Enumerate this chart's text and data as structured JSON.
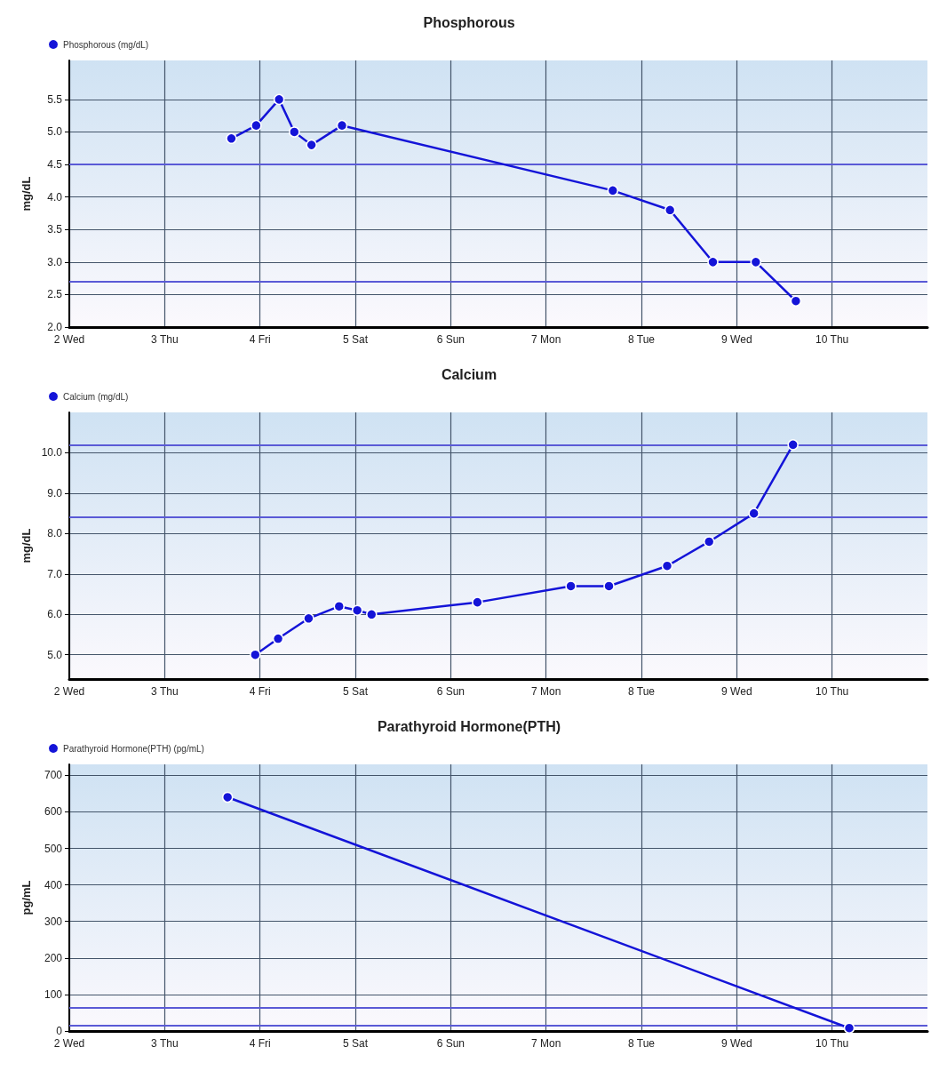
{
  "chart_data": [
    {
      "type": "line",
      "title": "Phosphorous",
      "ylabel": "mg/dL",
      "legend": "top left",
      "grid": true,
      "marker": "circle",
      "line_style": "solid",
      "xlim": [
        2,
        11
      ],
      "xticks": [
        {
          "value": 2,
          "label": "2 Wed"
        },
        {
          "value": 3,
          "label": "3 Thu"
        },
        {
          "value": 4,
          "label": "4 Fri"
        },
        {
          "value": 5,
          "label": "5 Sat"
        },
        {
          "value": 6,
          "label": "6 Sun"
        },
        {
          "value": 7,
          "label": "7 Mon"
        },
        {
          "value": 8,
          "label": "8 Tue"
        },
        {
          "value": 9,
          "label": "9 Wed"
        },
        {
          "value": 10,
          "label": "10 Thu"
        }
      ],
      "ylim": [
        2.0,
        6.1
      ],
      "yticks": [
        {
          "value": 2,
          "label": "2.0"
        },
        {
          "value": 2.5,
          "label": "2.5"
        },
        {
          "value": 3,
          "label": "3.0"
        },
        {
          "value": 3.5,
          "label": "3.5"
        },
        {
          "value": 4,
          "label": "4.0"
        },
        {
          "value": 4.5,
          "label": "4.5"
        },
        {
          "value": 5,
          "label": "5.0"
        },
        {
          "value": 5.5,
          "label": "5.5"
        }
      ],
      "series": [
        {
          "name": "Phosphorous (mg/dL)",
          "color": "#1414d8",
          "x": [
            3.7,
            3.96,
            4.2,
            4.36,
            4.54,
            4.86,
            7.7,
            8.3,
            8.75,
            9.2,
            9.62
          ],
          "values": [
            4.9,
            5.1,
            5.5,
            5.0,
            4.8,
            5.1,
            4.1,
            3.8,
            3.0,
            3.0,
            2.4
          ]
        }
      ],
      "ref_lines": [
        {
          "axis": "y",
          "value": 4.5,
          "color": "#5a5ad6"
        },
        {
          "axis": "y",
          "value": 2.7,
          "color": "#5a5ad6"
        }
      ]
    },
    {
      "type": "line",
      "title": "Calcium",
      "ylabel": "mg/dL",
      "legend": "top left",
      "grid": true,
      "marker": "circle",
      "line_style": "solid",
      "xlim": [
        2,
        11
      ],
      "xticks": [
        {
          "value": 2,
          "label": "2 Wed"
        },
        {
          "value": 3,
          "label": "3 Thu"
        },
        {
          "value": 4,
          "label": "4 Fri"
        },
        {
          "value": 5,
          "label": "5 Sat"
        },
        {
          "value": 6,
          "label": "6 Sun"
        },
        {
          "value": 7,
          "label": "7 Mon"
        },
        {
          "value": 8,
          "label": "8 Tue"
        },
        {
          "value": 9,
          "label": "9 Wed"
        },
        {
          "value": 10,
          "label": "10 Thu"
        }
      ],
      "ylim": [
        4.4,
        11.0
      ],
      "yticks": [
        {
          "value": 5,
          "label": "5.0"
        },
        {
          "value": 6,
          "label": "6.0"
        },
        {
          "value": 7,
          "label": "7.0"
        },
        {
          "value": 8,
          "label": "8.0"
        },
        {
          "value": 9,
          "label": "9.0"
        },
        {
          "value": 10,
          "label": "10.0"
        }
      ],
      "series": [
        {
          "name": "Calcium (mg/dL)",
          "color": "#1414d8",
          "x": [
            3.95,
            4.19,
            4.51,
            4.83,
            5.02,
            5.17,
            6.28,
            7.26,
            7.66,
            8.27,
            8.71,
            9.18,
            9.59
          ],
          "values": [
            5.0,
            5.4,
            5.9,
            6.2,
            6.1,
            6.0,
            6.3,
            6.7,
            6.7,
            7.2,
            7.8,
            8.5,
            10.2
          ]
        }
      ],
      "ref_lines": [
        {
          "axis": "y",
          "value": 10.2,
          "color": "#5a5ad6"
        },
        {
          "axis": "y",
          "value": 8.4,
          "color": "#5a5ad6"
        }
      ]
    },
    {
      "type": "line",
      "title": "Parathyroid Hormone(PTH)",
      "ylabel": "pg/mL",
      "legend": "top left",
      "grid": true,
      "marker": "circle",
      "line_style": "solid",
      "xlim": [
        2,
        11
      ],
      "xticks": [
        {
          "value": 2,
          "label": "2 Wed"
        },
        {
          "value": 3,
          "label": "3 Thu"
        },
        {
          "value": 4,
          "label": "4 Fri"
        },
        {
          "value": 5,
          "label": "5 Sat"
        },
        {
          "value": 6,
          "label": "6 Sun"
        },
        {
          "value": 7,
          "label": "7 Mon"
        },
        {
          "value": 8,
          "label": "8 Tue"
        },
        {
          "value": 9,
          "label": "9 Wed"
        },
        {
          "value": 10,
          "label": "10 Thu"
        }
      ],
      "ylim": [
        0,
        730
      ],
      "yticks": [
        0,
        100,
        200,
        300,
        400,
        500,
        600,
        700
      ],
      "series": [
        {
          "name": "Parathyroid Hormone(PTH) (pg/mL)",
          "color": "#1414d8",
          "x": [
            3.66,
            10.18
          ],
          "values": [
            640,
            8
          ]
        }
      ],
      "ref_lines": [
        {
          "axis": "y",
          "value": 65,
          "color": "#5a5ad6"
        },
        {
          "axis": "y",
          "value": 15,
          "color": "#5a5ad6"
        }
      ]
    }
  ]
}
